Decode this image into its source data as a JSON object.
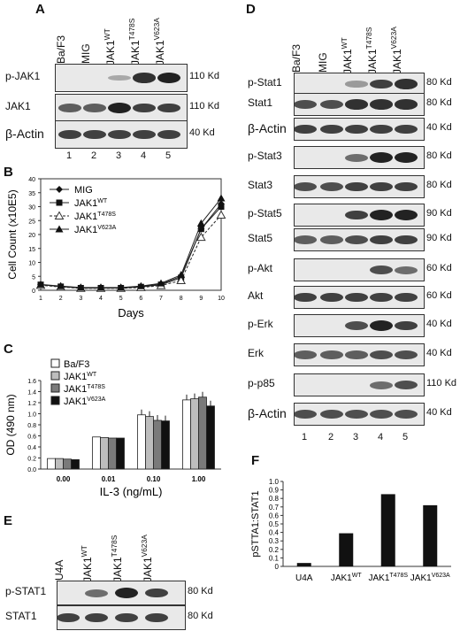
{
  "panels": {
    "A": {
      "label": "A",
      "lanes": [
        "Ba/F3",
        "MIG",
        "JAK1^WT",
        "JAK1^T478S",
        "JAK1^V623A"
      ],
      "rows": [
        "p-JAK1",
        "JAK1",
        "β-Actin"
      ],
      "mw": [
        "110 Kd",
        "110 Kd",
        "40 Kd"
      ],
      "lane_numbers": [
        "1",
        "2",
        "3",
        "4",
        "5"
      ]
    },
    "B": {
      "label": "B",
      "ylabel": "Cell Count (x10E5)",
      "xlabel": "Days",
      "legend": [
        "MIG",
        "JAK1^WT",
        "JAK1^T478S",
        "JAK1^V623A"
      ]
    },
    "C": {
      "label": "C",
      "ylabel": "OD (490 nm)",
      "xlabel": "IL-3 (ng/mL)",
      "legend": [
        "Ba/F3",
        "JAK1^WT",
        "JAK1^T478S",
        "JAK1^V623A"
      ]
    },
    "D": {
      "label": "D",
      "lanes": [
        "Ba/F3",
        "MIG",
        "JAK1^WT",
        "JAK1^T478S",
        "JAK1^V623A"
      ],
      "rows": [
        "p-Stat1",
        "Stat1",
        "β-Actin",
        "p-Stat3",
        "Stat3",
        "p-Stat5",
        "Stat5",
        "p-Akt",
        "Akt",
        "p-Erk",
        "Erk",
        "p-p85",
        "β-Actin"
      ],
      "mw": [
        "80 Kd",
        "80 Kd",
        "40 Kd",
        "80 Kd",
        "80 Kd",
        "90 Kd",
        "90 Kd",
        "60 Kd",
        "60 Kd",
        "40 Kd",
        "40 Kd",
        "110 Kd",
        "40 Kd"
      ],
      "lane_numbers": [
        "1",
        "2",
        "3",
        "4",
        "5"
      ]
    },
    "E": {
      "label": "E",
      "lanes": [
        "U4A",
        "JAK1^WT",
        "JAK1^T478S",
        "JAK1^V623A"
      ],
      "rows": [
        "p-STAT1",
        "STAT1"
      ],
      "mw": [
        "80 Kd",
        "80 Kd"
      ]
    },
    "F": {
      "label": "F",
      "ylabel": "pSTTA1:STAT1"
    }
  },
  "chart_data": [
    {
      "panel": "B",
      "type": "line",
      "xlabel": "Days",
      "ylabel": "Cell Count (x10E5)",
      "x": [
        1,
        2,
        3,
        4,
        5,
        6,
        7,
        8,
        9,
        10
      ],
      "xlim": [
        1,
        10
      ],
      "ylim": [
        0,
        40
      ],
      "yticks": [
        0,
        5,
        10,
        15,
        20,
        25,
        30,
        35,
        40
      ],
      "xticks": [
        1,
        2,
        3,
        4,
        5,
        6,
        7,
        8,
        9,
        10
      ],
      "legend_position": "top-left",
      "series": [
        {
          "name": "MIG",
          "marker": "diamond",
          "dash": "solid",
          "values": [
            2,
            1.4,
            0.9,
            0.9,
            0.9,
            1.3,
            2.2,
            5.0,
            22,
            31
          ]
        },
        {
          "name": "JAK1^WT",
          "marker": "square",
          "dash": "solid",
          "values": [
            2,
            1.3,
            0.8,
            0.8,
            0.8,
            1.2,
            2.0,
            4.5,
            22,
            30
          ]
        },
        {
          "name": "JAK1^T478S",
          "marker": "triangle-open",
          "dash": "dashed",
          "values": [
            1.8,
            1.2,
            0.7,
            0.7,
            0.7,
            1.0,
            1.7,
            3.5,
            19,
            27
          ]
        },
        {
          "name": "JAK1^V623A",
          "marker": "triangle",
          "dash": "solid",
          "values": [
            2.1,
            1.5,
            1.0,
            1.0,
            1.0,
            1.5,
            2.5,
            5.5,
            24,
            33
          ]
        }
      ]
    },
    {
      "panel": "C",
      "type": "bar",
      "xlabel": "IL-3 (ng/mL)",
      "ylabel": "OD (490 nm)",
      "categories": [
        "0.00",
        "0.01",
        "0.10",
        "1.00"
      ],
      "ylim": [
        0,
        1.6
      ],
      "yticks": [
        0,
        0.2,
        0.4,
        0.6,
        0.8,
        1.0,
        1.2,
        1.4,
        1.6
      ],
      "legend_position": "top-left",
      "series": [
        {
          "name": "Ba/F3",
          "color": "#ffffff",
          "values": [
            0.19,
            0.58,
            0.98,
            1.25
          ]
        },
        {
          "name": "JAK1^WT",
          "color": "#bdbdbd",
          "values": [
            0.19,
            0.57,
            0.95,
            1.27
          ]
        },
        {
          "name": "JAK1^T478S",
          "color": "#7a7a7a",
          "values": [
            0.18,
            0.56,
            0.88,
            1.3
          ]
        },
        {
          "name": "JAK1^V623A",
          "color": "#111111",
          "values": [
            0.17,
            0.56,
            0.87,
            1.14
          ]
        }
      ]
    },
    {
      "panel": "F",
      "type": "bar",
      "ylabel": "pSTTA1:STAT1",
      "categories": [
        "U4A",
        "JAK1^WT",
        "JAK1^T478S",
        "JAK1^V623A"
      ],
      "values": [
        0.04,
        0.39,
        0.85,
        0.72
      ],
      "ylim": [
        0,
        1.0
      ],
      "yticks": [
        0,
        0.1,
        0.2,
        0.3,
        0.4,
        0.5,
        0.6,
        0.7,
        0.8,
        0.9,
        1.0
      ]
    }
  ]
}
